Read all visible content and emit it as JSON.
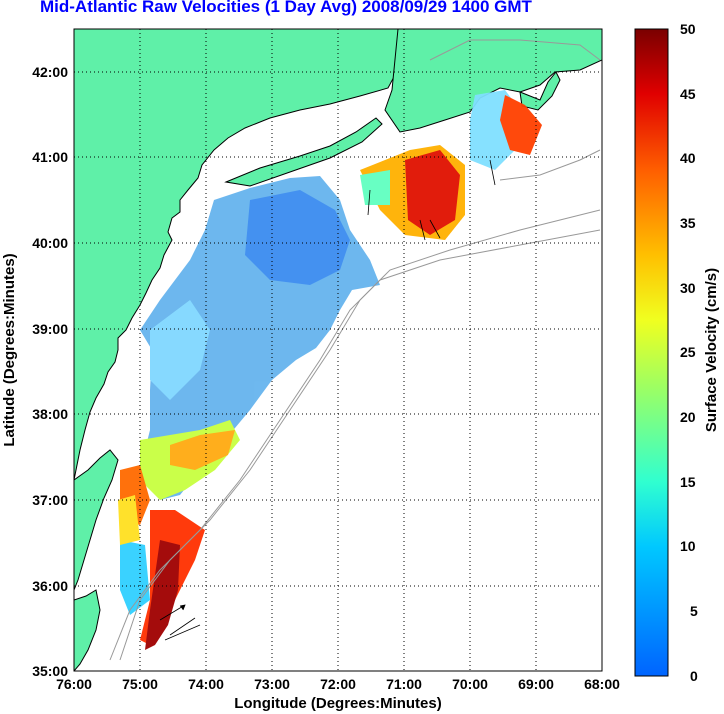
{
  "title": "Mid-Atlantic Raw Velocities (1 Day Avg) 2008/09/29 1400 GMT",
  "map": {
    "xlabel": "Longitude (Degrees:Minutes)",
    "ylabel": "Latitude (Degrees:Minutes)",
    "lon_range": [
      -76,
      -68
    ],
    "lat_range": [
      35,
      42.5
    ],
    "x_ticks": [
      "76:00",
      "75:00",
      "74:00",
      "73:00",
      "72:00",
      "71:00",
      "70:00",
      "69:00",
      "68:00"
    ],
    "y_ticks": [
      "35:00",
      "36:00",
      "37:00",
      "38:00",
      "39:00",
      "40:00",
      "41:00",
      "42:00"
    ],
    "grid": "dotted"
  },
  "colorbar": {
    "label": "Surface Velocity (cm/s)",
    "ticks": [
      "0",
      "5",
      "10",
      "15",
      "20",
      "25",
      "30",
      "35",
      "40",
      "45",
      "50"
    ],
    "range": [
      0,
      50
    ],
    "colormap": "jet"
  },
  "colors": {
    "title": "#0000ff",
    "land": "#5ff0a8",
    "coast": "#000000",
    "bathymetry": "#999999"
  }
}
